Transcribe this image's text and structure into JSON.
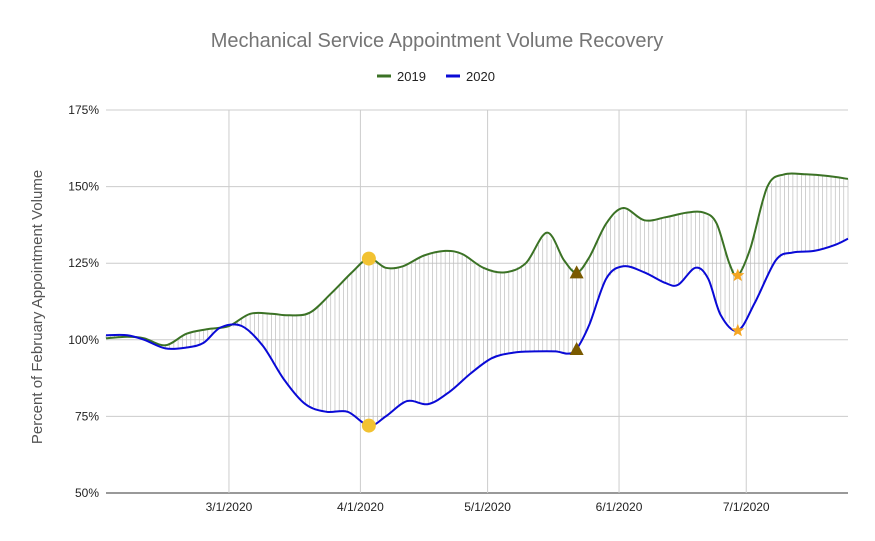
{
  "chart_data": {
    "type": "line",
    "title": "Mechanical Service Appointment Volume Recovery",
    "ylabel": "Percent of February Appointment Volume",
    "xlabel": "",
    "ylim": [
      50,
      175
    ],
    "y_ticks": [
      "50%",
      "75%",
      "100%",
      "125%",
      "150%",
      "175%"
    ],
    "x_ticks": [
      "3/1/2020",
      "4/1/2020",
      "5/1/2020",
      "6/1/2020",
      "7/1/2020"
    ],
    "legend_position": "top-center",
    "grid": true,
    "series": [
      {
        "name": "2019",
        "color": "#3b7225",
        "points": [
          [
            "2020-02-01",
            100.5
          ],
          [
            "2020-02-06",
            101
          ],
          [
            "2020-02-10",
            100.5
          ],
          [
            "2020-02-15",
            98.2
          ],
          [
            "2020-02-20",
            102
          ],
          [
            "2020-02-25",
            103.5
          ],
          [
            "2020-03-01",
            104.5
          ],
          [
            "2020-03-06",
            108.5
          ],
          [
            "2020-03-11",
            108.5
          ],
          [
            "2020-03-15",
            108
          ],
          [
            "2020-03-20",
            108.8
          ],
          [
            "2020-03-25",
            115
          ],
          [
            "2020-03-30",
            122
          ],
          [
            "2020-04-03",
            126.5
          ],
          [
            "2020-04-07",
            123.5
          ],
          [
            "2020-04-11",
            124
          ],
          [
            "2020-04-16",
            127.5
          ],
          [
            "2020-04-21",
            129
          ],
          [
            "2020-04-25",
            128
          ],
          [
            "2020-04-30",
            123.5
          ],
          [
            "2020-05-05",
            122
          ],
          [
            "2020-05-10",
            125
          ],
          [
            "2020-05-15",
            135
          ],
          [
            "2020-05-19",
            126
          ],
          [
            "2020-05-22",
            122
          ],
          [
            "2020-05-25",
            127
          ],
          [
            "2020-05-29",
            138
          ],
          [
            "2020-06-02",
            143
          ],
          [
            "2020-06-07",
            139
          ],
          [
            "2020-06-12",
            140
          ],
          [
            "2020-06-17",
            141.5
          ],
          [
            "2020-06-21",
            141.5
          ],
          [
            "2020-06-24",
            138
          ],
          [
            "2020-06-27",
            125
          ],
          [
            "2020-06-29",
            121
          ],
          [
            "2020-07-02",
            130
          ],
          [
            "2020-07-06",
            150
          ],
          [
            "2020-07-10",
            154
          ],
          [
            "2020-07-15",
            154
          ],
          [
            "2020-07-20",
            153.5
          ],
          [
            "2020-07-25",
            152.5
          ]
        ]
      },
      {
        "name": "2020",
        "color": "#0a0ad6",
        "points": [
          [
            "2020-02-01",
            101.5
          ],
          [
            "2020-02-06",
            101.5
          ],
          [
            "2020-02-10",
            100
          ],
          [
            "2020-02-15",
            97.2
          ],
          [
            "2020-02-20",
            97.5
          ],
          [
            "2020-02-24",
            99
          ],
          [
            "2020-02-28",
            104
          ],
          [
            "2020-03-04",
            104.5
          ],
          [
            "2020-03-09",
            98
          ],
          [
            "2020-03-14",
            87
          ],
          [
            "2020-03-19",
            79
          ],
          [
            "2020-03-24",
            76.5
          ],
          [
            "2020-03-29",
            76.5
          ],
          [
            "2020-04-03",
            72
          ],
          [
            "2020-04-07",
            75
          ],
          [
            "2020-04-12",
            80
          ],
          [
            "2020-04-17",
            79
          ],
          [
            "2020-04-22",
            83
          ],
          [
            "2020-04-27",
            89
          ],
          [
            "2020-05-02",
            94
          ],
          [
            "2020-05-07",
            95.8
          ],
          [
            "2020-05-12",
            96.2
          ],
          [
            "2020-05-17",
            96.2
          ],
          [
            "2020-05-20",
            95.5
          ],
          [
            "2020-05-22",
            97
          ],
          [
            "2020-05-25",
            105
          ],
          [
            "2020-05-29",
            120
          ],
          [
            "2020-06-02",
            124
          ],
          [
            "2020-06-07",
            122
          ],
          [
            "2020-06-12",
            118.5
          ],
          [
            "2020-06-15",
            118
          ],
          [
            "2020-06-19",
            123.5
          ],
          [
            "2020-06-22",
            120
          ],
          [
            "2020-06-25",
            108
          ],
          [
            "2020-06-29",
            103
          ],
          [
            "2020-07-03",
            112
          ],
          [
            "2020-07-08",
            126
          ],
          [
            "2020-07-12",
            128.5
          ],
          [
            "2020-07-17",
            129
          ],
          [
            "2020-07-22",
            131
          ],
          [
            "2020-07-25",
            133
          ]
        ]
      }
    ],
    "annotations": [
      {
        "shape": "circle",
        "color": "#f2c232",
        "points": [
          [
            "2020-04-03",
            126.5
          ],
          [
            "2020-04-03",
            72
          ]
        ]
      },
      {
        "shape": "triangle",
        "color": "#7a5a00",
        "points": [
          [
            "2020-05-22",
            122
          ],
          [
            "2020-05-22",
            97
          ]
        ]
      },
      {
        "shape": "star",
        "color": "#f5a623",
        "points": [
          [
            "2020-06-29",
            121
          ],
          [
            "2020-06-29",
            103
          ]
        ]
      }
    ]
  }
}
